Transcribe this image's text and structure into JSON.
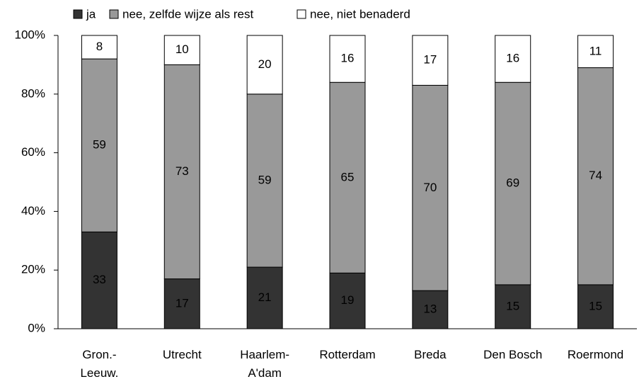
{
  "chart_data": {
    "type": "stacked_bar",
    "categories": [
      "Gron.-\nLeeuw.",
      "Utrecht",
      "Haarlem-\nA'dam",
      "Rotterdam",
      "Breda",
      "Den Bosch",
      "Roermond"
    ],
    "series": [
      {
        "name": "ja",
        "color": "#333333",
        "label_color": "#ffffff",
        "values": [
          33,
          17,
          21,
          19,
          13,
          15,
          15
        ]
      },
      {
        "name": "nee, zelfde wijze als rest",
        "color": "#999999",
        "label_color": "#000000",
        "values": [
          59,
          73,
          59,
          65,
          70,
          69,
          74
        ]
      },
      {
        "name": "nee, niet benaderd",
        "color": "#ffffff",
        "label_color": "#000000",
        "values": [
          8,
          10,
          20,
          16,
          17,
          16,
          11
        ]
      }
    ],
    "ylim": [
      0,
      100
    ],
    "yticks": [
      {
        "value": 0,
        "label": "0%"
      },
      {
        "value": 20,
        "label": "20%"
      },
      {
        "value": 40,
        "label": "40%"
      },
      {
        "value": 60,
        "label": "60%"
      },
      {
        "value": 80,
        "label": "80%"
      },
      {
        "value": 100,
        "label": "100%"
      }
    ],
    "legend": "top"
  }
}
